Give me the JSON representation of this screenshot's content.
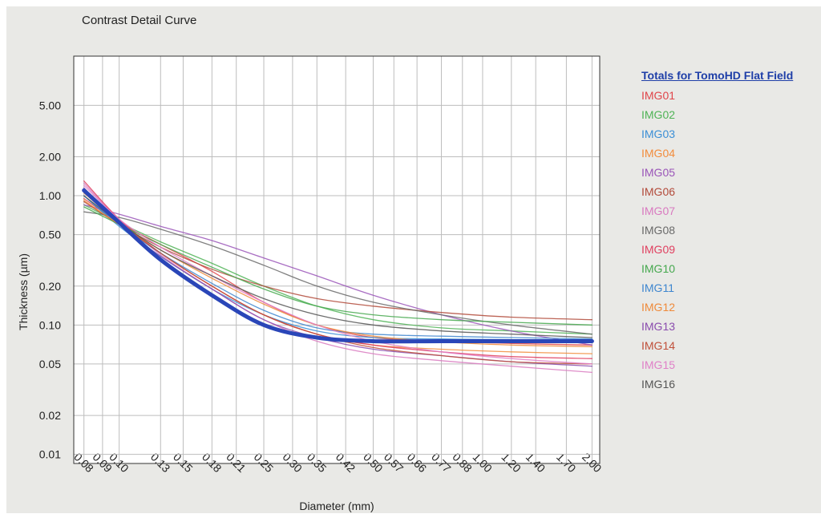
{
  "chart_data": {
    "type": "line",
    "title": "Contrast Detail Curve",
    "xlabel": "Diameter (mm)",
    "ylabel": "Thickness (µm)",
    "x_scale": "log",
    "y_scale": "log",
    "grid": true,
    "legend_position": "right",
    "legend_title": "Totals for TomoHD Flat Field",
    "x_ticks": [
      "0.08",
      "0.09",
      "0.10",
      "0.13",
      "0.15",
      "0.18",
      "0.21",
      "0.25",
      "0.30",
      "0.35",
      "0.42",
      "0.50",
      "0.57",
      "0.66",
      "0.77",
      "0.88",
      "1.00",
      "1.20",
      "1.40",
      "1.70",
      "2.00"
    ],
    "y_ticks": [
      "5.00",
      "2.00",
      "1.00",
      "0.50",
      "0.20",
      "0.10",
      "0.05",
      "0.02",
      "0.01"
    ],
    "xlim": [
      0.075,
      2.1
    ],
    "ylim": [
      0.0085,
      12
    ],
    "x": [
      0.08,
      0.1,
      0.13,
      0.18,
      0.25,
      0.35,
      0.5,
      0.77,
      1.2,
      2.0
    ],
    "series": [
      {
        "name": "Totals for TomoHD Flat Field",
        "color": "#2a46b8",
        "width": 5,
        "values": [
          1.1,
          0.62,
          0.32,
          0.17,
          0.1,
          0.08,
          0.075,
          0.075,
          0.075,
          0.075
        ]
      },
      {
        "name": "IMG01",
        "color": "#e0454a",
        "values": [
          0.95,
          0.62,
          0.42,
          0.26,
          0.15,
          0.1,
          0.08,
          0.075,
          0.072,
          0.07
        ]
      },
      {
        "name": "IMG02",
        "color": "#4fb356",
        "values": [
          0.85,
          0.62,
          0.44,
          0.3,
          0.2,
          0.14,
          0.11,
          0.095,
          0.09,
          0.085
        ]
      },
      {
        "name": "IMG03",
        "color": "#3b8fd6",
        "values": [
          1.0,
          0.58,
          0.34,
          0.19,
          0.12,
          0.09,
          0.08,
          0.078,
          0.077,
          0.076
        ]
      },
      {
        "name": "IMG04",
        "color": "#f28c3c",
        "values": [
          1.05,
          0.62,
          0.36,
          0.2,
          0.12,
          0.085,
          0.07,
          0.065,
          0.062,
          0.06
        ]
      },
      {
        "name": "IMG05",
        "color": "#9a55b8",
        "values": [
          0.85,
          0.72,
          0.58,
          0.45,
          0.33,
          0.24,
          0.17,
          0.12,
          0.09,
          0.07
        ]
      },
      {
        "name": "IMG06",
        "color": "#b24a3a",
        "values": [
          0.9,
          0.6,
          0.4,
          0.27,
          0.2,
          0.16,
          0.14,
          0.125,
          0.115,
          0.11
        ]
      },
      {
        "name": "IMG07",
        "color": "#d97ac0",
        "values": [
          1.25,
          0.65,
          0.35,
          0.19,
          0.11,
          0.075,
          0.06,
          0.053,
          0.048,
          0.043
        ]
      },
      {
        "name": "IMG08",
        "color": "#6a6a6a",
        "values": [
          0.75,
          0.68,
          0.55,
          0.41,
          0.29,
          0.2,
          0.15,
          0.12,
          0.1,
          0.085
        ]
      },
      {
        "name": "IMG09",
        "color": "#e04060",
        "values": [
          1.3,
          0.66,
          0.36,
          0.2,
          0.12,
          0.085,
          0.07,
          0.062,
          0.057,
          0.055
        ]
      },
      {
        "name": "IMG10",
        "color": "#45a84e",
        "values": [
          0.82,
          0.6,
          0.42,
          0.28,
          0.19,
          0.14,
          0.12,
          0.11,
          0.105,
          0.1
        ]
      },
      {
        "name": "IMG11",
        "color": "#3e86cf",
        "values": [
          1.0,
          0.6,
          0.36,
          0.21,
          0.13,
          0.095,
          0.085,
          0.082,
          0.08,
          0.078
        ]
      },
      {
        "name": "IMG12",
        "color": "#ef8a3a",
        "values": [
          0.92,
          0.6,
          0.38,
          0.23,
          0.145,
          0.1,
          0.082,
          0.074,
          0.07,
          0.068
        ]
      },
      {
        "name": "IMG13",
        "color": "#8a4cae",
        "values": [
          1.15,
          0.6,
          0.34,
          0.19,
          0.11,
          0.08,
          0.065,
          0.058,
          0.052,
          0.048
        ]
      },
      {
        "name": "IMG14",
        "color": "#c0503a",
        "values": [
          1.1,
          0.62,
          0.36,
          0.2,
          0.12,
          0.085,
          0.067,
          0.058,
          0.052,
          0.05
        ]
      },
      {
        "name": "IMG15",
        "color": "#e080c8",
        "values": [
          1.2,
          0.66,
          0.4,
          0.24,
          0.15,
          0.1,
          0.075,
          0.062,
          0.055,
          0.05
        ]
      },
      {
        "name": "IMG16",
        "color": "#555555",
        "values": [
          1.0,
          0.62,
          0.38,
          0.24,
          0.16,
          0.12,
          0.1,
          0.09,
          0.085,
          0.08
        ]
      }
    ]
  }
}
